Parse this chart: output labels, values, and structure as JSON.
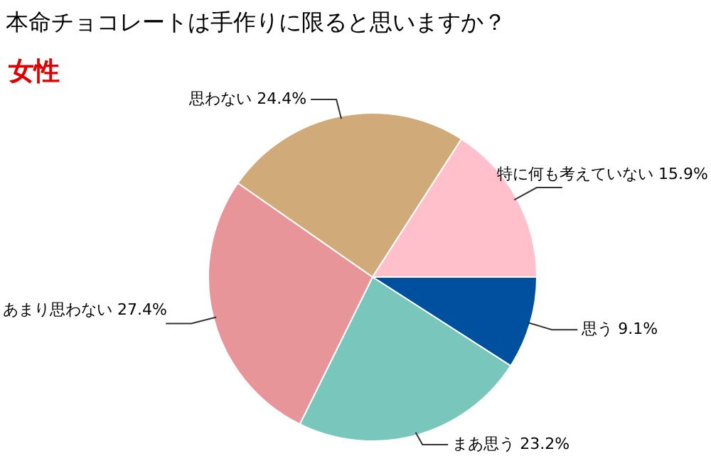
{
  "chart_data": {
    "type": "pie",
    "title": "本命チョコレートは手作りに限ると思いますか？",
    "subtitle": "女性",
    "categories": [
      "思う",
      "まあ思う",
      "あまり思わない",
      "思わない",
      "特に何も考えていない"
    ],
    "values": [
      9.1,
      23.2,
      27.4,
      24.4,
      15.9
    ],
    "value_labels": [
      "9.1%",
      "23.2%",
      "27.4%",
      "24.4%",
      "15.9%"
    ],
    "colors": [
      "#0050a0",
      "#78c6bc",
      "#e8959a",
      "#d0aa78",
      "#ffc0cc"
    ]
  }
}
